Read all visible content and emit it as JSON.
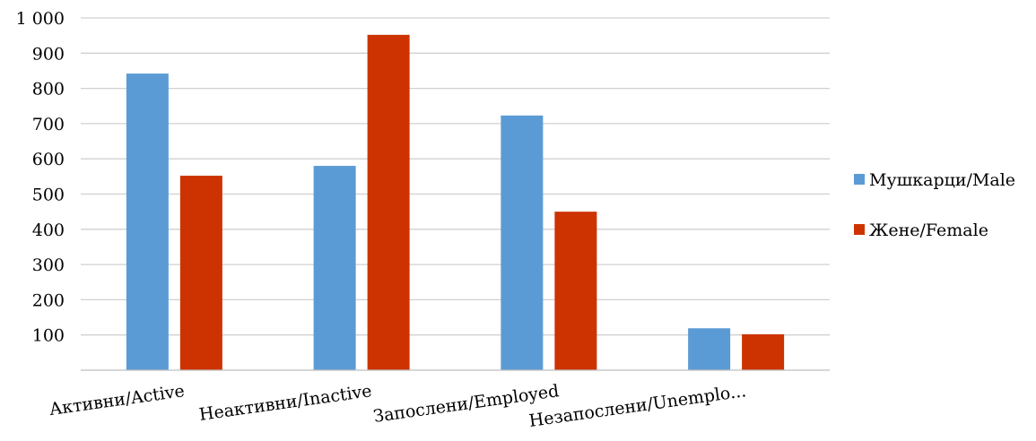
{
  "chart_data": {
    "type": "bar",
    "title": "",
    "xlabel": "",
    "ylabel": "",
    "categories": [
      "Активни/Active",
      "Неактивни/Inactive",
      "Запослени/Employed",
      "Незапослени/Unemplo..."
    ],
    "series": [
      {
        "name": "Мушкарци/Male",
        "color": "#5b9bd5",
        "values": [
          842,
          580,
          723,
          119
        ]
      },
      {
        "name": "Жене/Female",
        "color": "#cc3300",
        "values": [
          552,
          952,
          450,
          102
        ]
      }
    ],
    "ylim": [
      0,
      1000
    ],
    "yticks": [
      100,
      200,
      300,
      400,
      500,
      600,
      700,
      800,
      900,
      1000
    ],
    "ytick_labels": [
      "100",
      "200",
      "300",
      "400",
      "500",
      "600",
      "700",
      "800",
      "900",
      "1 000"
    ],
    "grid": true,
    "legend_position": "right"
  }
}
